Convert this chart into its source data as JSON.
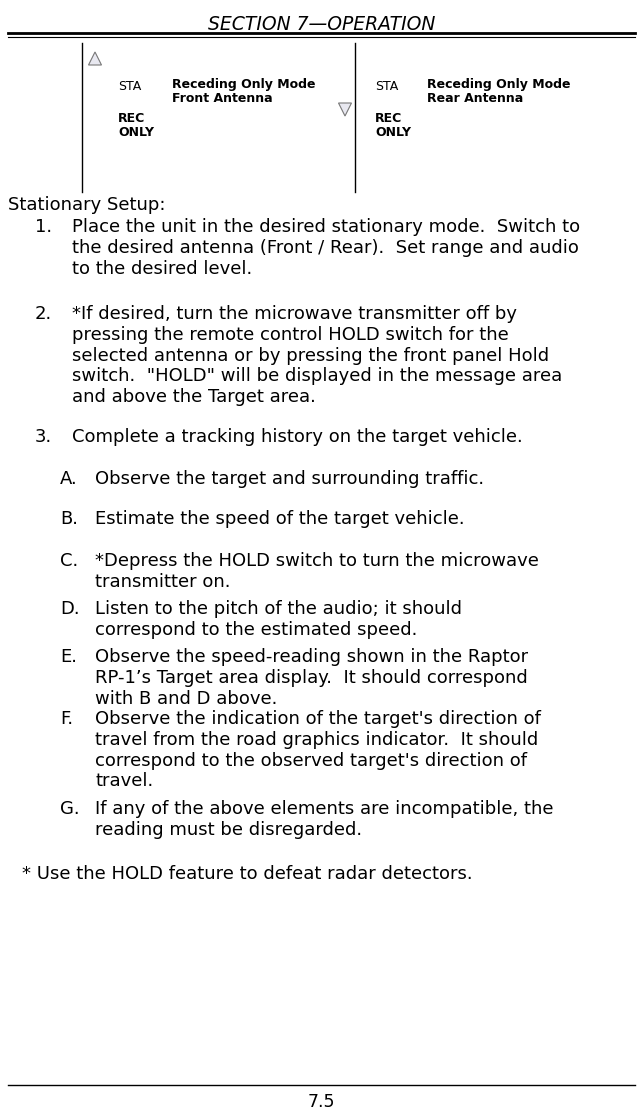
{
  "title": "SECTION 7—OPERATION",
  "page_number": "7.5",
  "bg_color": "#ffffff",
  "text_color": "#000000",
  "footer_note": "* Use the HOLD feature to defeat radar detectors.",
  "left_sta": "STA",
  "left_mode": "Receding Only Mode",
  "left_antenna": "Front Antenna",
  "left_rec": "REC",
  "left_only": "ONLY",
  "right_sta": "STA",
  "right_mode": "Receding Only Mode",
  "right_antenna": "Rear Antenna",
  "right_rec": "REC",
  "right_only": "ONLY",
  "stationary_label": "Stationary Setup:",
  "item1_num": "1.",
  "item1_text": "Place the unit in the desired stationary mode.  Switch to\nthe desired antenna (Front / Rear).  Set range and audio\nto the desired level.",
  "item2_num": "2.",
  "item2_text": "*If desired, turn the microwave transmitter off by\npressing the remote control HOLD switch for the\nselected antenna or by pressing the front panel Hold\nswitch.  \"HOLD\" will be displayed in the message area\nand above the Target area.",
  "item3_num": "3.",
  "item3_text": "Complete a tracking history on the target vehicle.",
  "subA_letter": "A.",
  "subA_text": "Observe the target and surrounding traffic.",
  "subB_letter": "B.",
  "subB_text": "Estimate the speed of the target vehicle.",
  "subC_letter": "C.",
  "subC_text": "*Depress the HOLD switch to turn the microwave\ntransmitter on.",
  "subD_letter": "D.",
  "subD_text": "Listen to the pitch of the audio; it should\ncorrespond to the estimated speed.",
  "subE_letter": "E.",
  "subE_text": "Observe the speed-reading shown in the Raptor\nRP-1’s Target area display.  It should correspond\nwith B and D above.",
  "subF_letter": "F.",
  "subF_text": "Observe the indication of the target's direction of\ntravel from the road graphics indicator.  It should\ncorrespond to the observed target's direction of\ntravel.",
  "subG_letter": "G.",
  "subG_text": "If any of the above elements are incompatible, the\nreading must be disregarded."
}
